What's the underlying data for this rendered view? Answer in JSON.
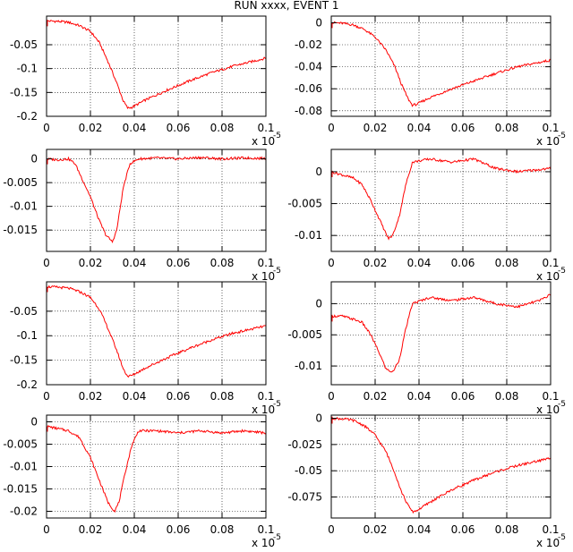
{
  "header": {
    "title": "RUN xxxx, EVENT     1"
  },
  "colors": {
    "trace": "#ff0000",
    "frame": "#000000",
    "grid": "#000000",
    "background": "#ffffff"
  },
  "axis_multiplier": {
    "text": "x 10",
    "exponent": "-5"
  },
  "chart_data": [
    {
      "type": "line",
      "grid": true,
      "x_range": [
        0,
        0.1
      ],
      "y_range": [
        -0.2,
        0.01
      ],
      "x_ticks": [
        0,
        0.02,
        0.04,
        0.06,
        0.08,
        0.1
      ],
      "x_tick_labels": [
        "0",
        "0.02",
        "0.04",
        "0.06",
        "0.08",
        "0.1"
      ],
      "y_ticks": [
        -0.2,
        -0.15,
        -0.1,
        -0.05
      ],
      "y_tick_labels": [
        "-0.2",
        "-0.15",
        "-0.1",
        "-0.05"
      ],
      "x_multiplier": "x 10^-5",
      "series": [
        {
          "points": [
            [
              0,
              0
            ],
            [
              0.005,
              -0.001
            ],
            [
              0.01,
              -0.003
            ],
            [
              0.015,
              -0.01
            ],
            [
              0.02,
              -0.022
            ],
            [
              0.024,
              -0.045
            ],
            [
              0.028,
              -0.085
            ],
            [
              0.032,
              -0.13
            ],
            [
              0.035,
              -0.168
            ],
            [
              0.037,
              -0.183
            ],
            [
              0.039,
              -0.181
            ],
            [
              0.045,
              -0.166
            ],
            [
              0.055,
              -0.145
            ],
            [
              0.065,
              -0.126
            ],
            [
              0.075,
              -0.109
            ],
            [
              0.085,
              -0.095
            ],
            [
              0.1,
              -0.078
            ]
          ]
        }
      ]
    },
    {
      "type": "line",
      "grid": true,
      "x_range": [
        0,
        0.1
      ],
      "y_range": [
        -0.085,
        0.006
      ],
      "x_ticks": [
        0,
        0.02,
        0.04,
        0.06,
        0.08,
        0.1
      ],
      "x_tick_labels": [
        "0",
        "0.02",
        "0.04",
        "0.06",
        "0.08",
        "0.1"
      ],
      "y_ticks": [
        -0.08,
        -0.06,
        -0.04,
        -0.02,
        0
      ],
      "y_tick_labels": [
        "-0.08",
        "-0.06",
        "-0.04",
        "-0.02",
        "0"
      ],
      "x_multiplier": "x 10^-5",
      "series": [
        {
          "points": [
            [
              0,
              0
            ],
            [
              0.005,
              -0.0005
            ],
            [
              0.01,
              -0.002
            ],
            [
              0.015,
              -0.006
            ],
            [
              0.02,
              -0.013
            ],
            [
              0.025,
              -0.025
            ],
            [
              0.029,
              -0.04
            ],
            [
              0.032,
              -0.056
            ],
            [
              0.035,
              -0.069
            ],
            [
              0.037,
              -0.075
            ],
            [
              0.039,
              -0.074
            ],
            [
              0.045,
              -0.068
            ],
            [
              0.055,
              -0.06
            ],
            [
              0.065,
              -0.053
            ],
            [
              0.075,
              -0.046
            ],
            [
              0.085,
              -0.04
            ],
            [
              0.1,
              -0.034
            ]
          ]
        }
      ]
    },
    {
      "type": "line",
      "grid": true,
      "x_range": [
        0,
        0.1
      ],
      "y_range": [
        -0.0195,
        0.002
      ],
      "x_ticks": [
        0,
        0.02,
        0.04,
        0.06,
        0.08,
        0.1
      ],
      "x_tick_labels": [
        "0",
        "0.02",
        "0.04",
        "0.06",
        "0.08",
        "0.1"
      ],
      "y_ticks": [
        -0.015,
        -0.01,
        -0.005,
        0
      ],
      "y_tick_labels": [
        "-0.015",
        "-0.01",
        "-0.005",
        "0"
      ],
      "x_multiplier": "x 10^-5",
      "series": [
        {
          "points": [
            [
              0,
              0
            ],
            [
              0.005,
              -0.0002
            ],
            [
              0.01,
              0
            ],
            [
              0.013,
              -0.001
            ],
            [
              0.016,
              -0.004
            ],
            [
              0.02,
              -0.008
            ],
            [
              0.024,
              -0.013
            ],
            [
              0.027,
              -0.016
            ],
            [
              0.03,
              -0.0175
            ],
            [
              0.032,
              -0.015
            ],
            [
              0.035,
              -0.006
            ],
            [
              0.038,
              -0.001
            ],
            [
              0.042,
              0
            ],
            [
              0.05,
              0.0002
            ],
            [
              0.06,
              0
            ],
            [
              0.07,
              0.0003
            ],
            [
              0.08,
              0
            ],
            [
              0.09,
              0.0002
            ],
            [
              0.1,
              0.0001
            ]
          ]
        }
      ]
    },
    {
      "type": "line",
      "grid": true,
      "x_range": [
        0,
        0.1
      ],
      "y_range": [
        -0.0125,
        0.0035
      ],
      "x_ticks": [
        0,
        0.02,
        0.04,
        0.06,
        0.08,
        0.1
      ],
      "x_tick_labels": [
        "0",
        "0.02",
        "0.04",
        "0.06",
        "0.08",
        "0.1"
      ],
      "y_ticks": [
        -0.01,
        -0.005,
        0
      ],
      "y_tick_labels": [
        "-0.01",
        "-0.005",
        "0"
      ],
      "x_multiplier": "x 10^-5",
      "series": [
        {
          "points": [
            [
              0,
              0
            ],
            [
              0.005,
              -0.0005
            ],
            [
              0.01,
              -0.001
            ],
            [
              0.014,
              -0.002
            ],
            [
              0.018,
              -0.0045
            ],
            [
              0.022,
              -0.0075
            ],
            [
              0.026,
              -0.0105
            ],
            [
              0.028,
              -0.01
            ],
            [
              0.031,
              -0.007
            ],
            [
              0.034,
              -0.002
            ],
            [
              0.037,
              0.0015
            ],
            [
              0.045,
              0.002
            ],
            [
              0.055,
              0.0015
            ],
            [
              0.065,
              0.002
            ],
            [
              0.075,
              0.0005
            ],
            [
              0.085,
              0
            ],
            [
              0.1,
              0.0005
            ]
          ]
        }
      ]
    },
    {
      "type": "line",
      "grid": true,
      "x_range": [
        0,
        0.1
      ],
      "y_range": [
        -0.2,
        0.01
      ],
      "x_ticks": [
        0,
        0.02,
        0.04,
        0.06,
        0.08,
        0.1
      ],
      "x_tick_labels": [
        "0",
        "0.02",
        "0.04",
        "0.06",
        "0.08",
        "0.1"
      ],
      "y_ticks": [
        -0.2,
        -0.15,
        -0.1,
        -0.05
      ],
      "y_tick_labels": [
        "-0.2",
        "-0.15",
        "-0.1",
        "-0.05"
      ],
      "x_multiplier": "x 10^-5",
      "series": [
        {
          "points": [
            [
              0,
              0
            ],
            [
              0.005,
              -0.001
            ],
            [
              0.01,
              -0.003
            ],
            [
              0.015,
              -0.01
            ],
            [
              0.02,
              -0.022
            ],
            [
              0.024,
              -0.045
            ],
            [
              0.028,
              -0.085
            ],
            [
              0.032,
              -0.13
            ],
            [
              0.035,
              -0.168
            ],
            [
              0.037,
              -0.183
            ],
            [
              0.039,
              -0.181
            ],
            [
              0.045,
              -0.166
            ],
            [
              0.055,
              -0.145
            ],
            [
              0.065,
              -0.126
            ],
            [
              0.075,
              -0.109
            ],
            [
              0.085,
              -0.095
            ],
            [
              0.1,
              -0.08
            ]
          ]
        }
      ]
    },
    {
      "type": "line",
      "grid": true,
      "x_range": [
        0,
        0.1
      ],
      "y_range": [
        -0.013,
        0.0035
      ],
      "x_ticks": [
        0,
        0.02,
        0.04,
        0.06,
        0.08,
        0.1
      ],
      "x_tick_labels": [
        "0",
        "0.02",
        "0.04",
        "0.06",
        "0.08",
        "0.1"
      ],
      "y_ticks": [
        -0.01,
        -0.005,
        0
      ],
      "y_tick_labels": [
        "-0.01",
        "-0.005",
        "0"
      ],
      "x_multiplier": "x 10^-5",
      "series": [
        {
          "points": [
            [
              0,
              -0.002
            ],
            [
              0.005,
              -0.002
            ],
            [
              0.01,
              -0.0025
            ],
            [
              0.014,
              -0.003
            ],
            [
              0.018,
              -0.005
            ],
            [
              0.022,
              -0.008
            ],
            [
              0.025,
              -0.0105
            ],
            [
              0.028,
              -0.011
            ],
            [
              0.031,
              -0.009
            ],
            [
              0.034,
              -0.004
            ],
            [
              0.037,
              0
            ],
            [
              0.045,
              0.001
            ],
            [
              0.055,
              0.0005
            ],
            [
              0.065,
              0.001
            ],
            [
              0.075,
              0
            ],
            [
              0.085,
              -0.0005
            ],
            [
              0.095,
              0.0005
            ],
            [
              0.1,
              0.0015
            ]
          ]
        }
      ]
    },
    {
      "type": "line",
      "grid": true,
      "x_range": [
        0,
        0.1
      ],
      "y_range": [
        -0.0215,
        0.0015
      ],
      "x_ticks": [
        0,
        0.02,
        0.04,
        0.06,
        0.08,
        0.1
      ],
      "x_tick_labels": [
        "0",
        "0.02",
        "0.04",
        "0.06",
        "0.08",
        "0.1"
      ],
      "y_ticks": [
        -0.02,
        -0.015,
        -0.01,
        -0.005,
        0
      ],
      "y_tick_labels": [
        "-0.02",
        "-0.015",
        "-0.01",
        "-0.005",
        "0"
      ],
      "x_multiplier": "x 10^-5",
      "series": [
        {
          "points": [
            [
              0,
              -0.001
            ],
            [
              0.005,
              -0.0015
            ],
            [
              0.01,
              -0.002
            ],
            [
              0.015,
              -0.0035
            ],
            [
              0.02,
              -0.008
            ],
            [
              0.024,
              -0.013
            ],
            [
              0.028,
              -0.018
            ],
            [
              0.031,
              -0.02
            ],
            [
              0.033,
              -0.018
            ],
            [
              0.036,
              -0.011
            ],
            [
              0.039,
              -0.005
            ],
            [
              0.042,
              -0.002
            ],
            [
              0.05,
              -0.002
            ],
            [
              0.06,
              -0.0025
            ],
            [
              0.07,
              -0.002
            ],
            [
              0.08,
              -0.0025
            ],
            [
              0.09,
              -0.002
            ],
            [
              0.1,
              -0.0025
            ]
          ]
        }
      ]
    },
    {
      "type": "line",
      "grid": true,
      "x_range": [
        0,
        0.1
      ],
      "y_range": [
        -0.095,
        0.003
      ],
      "x_ticks": [
        0,
        0.02,
        0.04,
        0.06,
        0.08,
        0.1
      ],
      "x_tick_labels": [
        "0",
        "0.02",
        "0.04",
        "0.06",
        "0.08",
        "0.1"
      ],
      "y_ticks": [
        -0.075,
        -0.05,
        -0.025,
        0
      ],
      "y_tick_labels": [
        "-0.075",
        "-0.05",
        "-0.025",
        "0"
      ],
      "x_multiplier": "x 10^-5",
      "series": [
        {
          "points": [
            [
              0,
              0
            ],
            [
              0.005,
              -0.0005
            ],
            [
              0.01,
              -0.002
            ],
            [
              0.015,
              -0.007
            ],
            [
              0.02,
              -0.016
            ],
            [
              0.025,
              -0.032
            ],
            [
              0.029,
              -0.052
            ],
            [
              0.032,
              -0.07
            ],
            [
              0.035,
              -0.083
            ],
            [
              0.037,
              -0.089
            ],
            [
              0.039,
              -0.088
            ],
            [
              0.045,
              -0.08
            ],
            [
              0.055,
              -0.068
            ],
            [
              0.065,
              -0.059
            ],
            [
              0.075,
              -0.051
            ],
            [
              0.085,
              -0.045
            ],
            [
              0.1,
              -0.038
            ]
          ]
        }
      ]
    }
  ]
}
